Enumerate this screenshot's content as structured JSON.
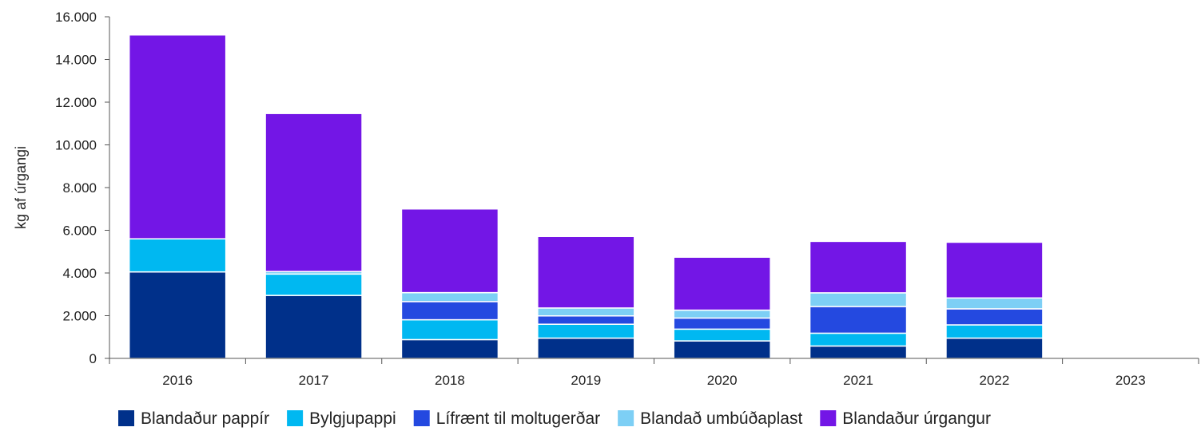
{
  "chart_data": {
    "type": "bar",
    "stacked": true,
    "categories": [
      "2016",
      "2017",
      "2018",
      "2019",
      "2020",
      "2021",
      "2022",
      "2023"
    ],
    "ylabel": "kg af úrgangi",
    "xlabel": "",
    "ylim": [
      0,
      16000
    ],
    "yticks": [
      0,
      2000,
      4000,
      6000,
      8000,
      10000,
      12000,
      14000,
      16000
    ],
    "ytick_labels": [
      "0",
      "2.000",
      "4.000",
      "6.000",
      "8.000",
      "10.000",
      "12.000",
      "14.000",
      "16.000"
    ],
    "grid": false,
    "legend_position": "bottom",
    "series": [
      {
        "name": "Blandaður pappír",
        "color": "#00308A",
        "values": [
          4050,
          2950,
          880,
          950,
          820,
          580,
          950,
          0
        ]
      },
      {
        "name": "Bylgjupappi",
        "color": "#00B8F1",
        "values": [
          1550,
          1000,
          930,
          650,
          550,
          600,
          620,
          0
        ]
      },
      {
        "name": "Lífrænt til moltugerðar",
        "color": "#2449E0",
        "values": [
          0,
          0,
          850,
          390,
          520,
          1250,
          750,
          0
        ]
      },
      {
        "name": "Blandað umbúðaplast",
        "color": "#7DCFF5",
        "values": [
          0,
          120,
          420,
          370,
          370,
          640,
          510,
          0
        ]
      },
      {
        "name": "Blandaður úrgangur",
        "color": "#7316E6",
        "values": [
          9550,
          7400,
          3920,
          3350,
          2480,
          2410,
          2610,
          0
        ]
      }
    ]
  }
}
